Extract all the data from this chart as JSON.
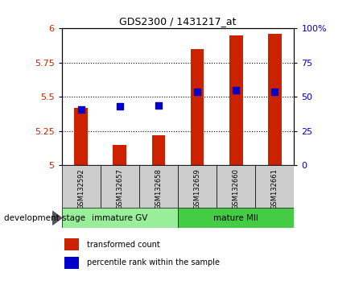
{
  "title": "GDS2300 / 1431217_at",
  "samples": [
    "GSM132592",
    "GSM132657",
    "GSM132658",
    "GSM132659",
    "GSM132660",
    "GSM132661"
  ],
  "red_bars": [
    5.42,
    5.15,
    5.22,
    5.85,
    5.95,
    5.96
  ],
  "blue_dots": [
    5.41,
    5.43,
    5.44,
    5.54,
    5.55,
    5.54
  ],
  "ymin": 5.0,
  "ymax": 6.0,
  "yticks_left": [
    5,
    5.25,
    5.5,
    5.75,
    6
  ],
  "yticks_right_labels": [
    "0",
    "25",
    "50",
    "75",
    "100%"
  ],
  "bar_color": "#cc2200",
  "dot_color": "#0000cc",
  "groups": [
    {
      "label": "immature GV",
      "start": 0,
      "end": 3,
      "color": "#99ee99"
    },
    {
      "label": "mature MII",
      "start": 3,
      "end": 6,
      "color": "#44cc44"
    }
  ],
  "group_label": "development stage",
  "bar_width": 0.35,
  "dot_size": 30,
  "legend_items": [
    {
      "label": "transformed count",
      "color": "#cc2200"
    },
    {
      "label": "percentile rank within the sample",
      "color": "#0000cc"
    }
  ]
}
